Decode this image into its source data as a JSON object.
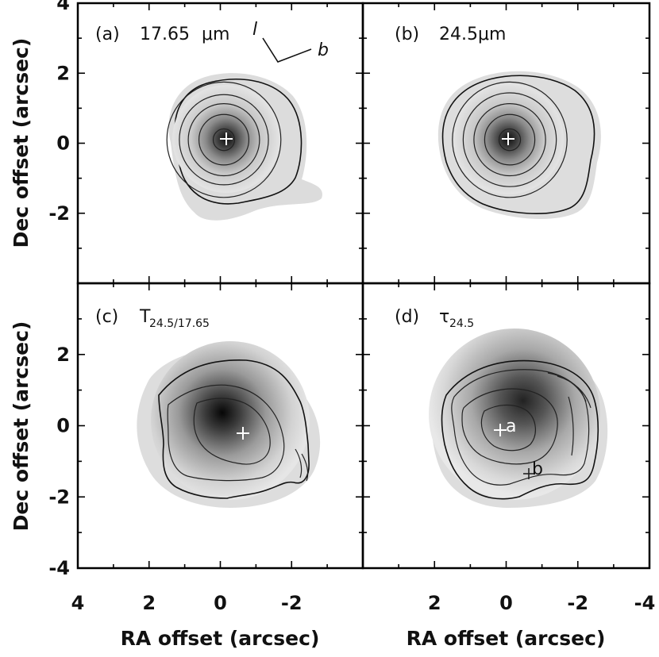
{
  "chart_data": [
    {
      "type": "heatmap",
      "panel": "(a)",
      "label": "17.65",
      "label_unit": "μm",
      "orientation_labels": [
        "l",
        "b"
      ],
      "xlim": [
        4,
        -4
      ],
      "ylim": [
        -4,
        4
      ],
      "yticks": [
        4,
        2,
        0,
        -2
      ],
      "peak_marker": [
        -0.1,
        0.1
      ],
      "contour_radii_arcsec": [
        0.3,
        0.7,
        1.0,
        1.25,
        1.6
      ]
    },
    {
      "type": "heatmap",
      "panel": "(b)",
      "label": "24.5μm",
      "xlim": [
        4,
        -4
      ],
      "ylim": [
        -4,
        4
      ],
      "peak_marker": [
        -0.1,
        0.1
      ],
      "contour_radii_arcsec": [
        0.3,
        0.7,
        1.0,
        1.3,
        1.6
      ]
    },
    {
      "type": "heatmap",
      "panel": "(c)",
      "label": "T",
      "label_sub": "24.5/17.65",
      "xlim": [
        4,
        -4
      ],
      "ylim": [
        -4,
        4
      ],
      "yticks": [
        2,
        0,
        -2,
        -4
      ],
      "xticks": [
        4,
        2,
        0,
        -2
      ],
      "peak_marker": [
        -0.6,
        -0.2
      ]
    },
    {
      "type": "heatmap",
      "panel": "(d)",
      "label": "τ",
      "label_sub": "24.5",
      "xlim": [
        4,
        -4
      ],
      "ylim": [
        -4,
        4
      ],
      "xticks": [
        2,
        0,
        -2,
        -4
      ],
      "markers": [
        {
          "name": "a",
          "x": 0.1,
          "y": -0.1
        },
        {
          "name": "b",
          "x": -0.6,
          "y": -1.3
        }
      ]
    }
  ],
  "axes": {
    "ylabel": "Dec offset (arcsec)",
    "xlabel": "RA offset (arcsec)"
  }
}
